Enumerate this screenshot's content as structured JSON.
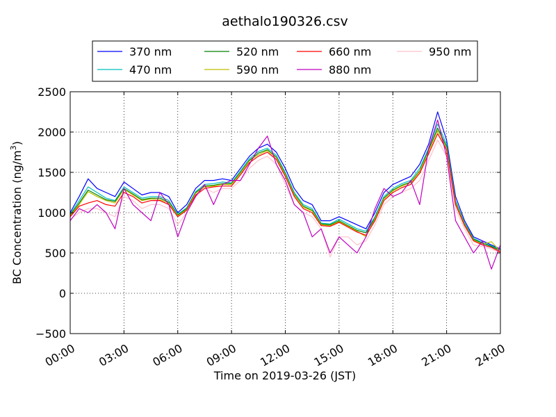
{
  "chart_data": {
    "type": "line",
    "title": "aethalo190326.csv",
    "xlabel": "Time on 2019-03-26 (JST)",
    "ylabel": "BC Concentration (ng/m³)",
    "ylabel_parts": {
      "main": "BC Concentration (ng/m",
      "sup": "3",
      "end": ")"
    },
    "xlim": [
      0,
      24
    ],
    "ylim": [
      -500,
      2500
    ],
    "x_unit": "hours",
    "grid": true,
    "legend_placement": "top-center, outside plot, 4 columns",
    "x_ticks": [
      {
        "value": 0,
        "label": "00:00"
      },
      {
        "value": 3,
        "label": "03:00"
      },
      {
        "value": 6,
        "label": "06:00"
      },
      {
        "value": 9,
        "label": "09:00"
      },
      {
        "value": 12,
        "label": "12:00"
      },
      {
        "value": 15,
        "label": "15:00"
      },
      {
        "value": 18,
        "label": "18:00"
      },
      {
        "value": 21,
        "label": "21:00"
      },
      {
        "value": 24,
        "label": "24:00"
      }
    ],
    "y_ticks": [
      {
        "value": 2500,
        "label": "2500"
      },
      {
        "value": 2000,
        "label": "2000"
      },
      {
        "value": 1500,
        "label": "1500"
      },
      {
        "value": 1000,
        "label": "1000"
      },
      {
        "value": 500,
        "label": "500"
      },
      {
        "value": 0,
        "label": "0"
      },
      {
        "value": -500,
        "label": "−500"
      }
    ],
    "x": [
      0,
      0.5,
      1,
      1.5,
      2,
      2.5,
      3,
      3.5,
      4,
      4.5,
      5,
      5.5,
      6,
      6.5,
      7,
      7.5,
      8,
      8.5,
      9,
      9.5,
      10,
      10.5,
      11,
      11.5,
      12,
      12.5,
      13,
      13.5,
      14,
      14.5,
      15,
      15.5,
      16,
      16.5,
      17,
      17.5,
      18,
      18.5,
      19,
      19.5,
      20,
      20.5,
      21,
      21.5,
      22,
      22.5,
      23,
      23.5,
      24
    ],
    "series": [
      {
        "name": "370 nm",
        "color": "#0000ff",
        "values": [
          1000,
          1200,
          1420,
          1300,
          1250,
          1200,
          1380,
          1300,
          1220,
          1250,
          1250,
          1200,
          1000,
          1100,
          1300,
          1400,
          1400,
          1420,
          1400,
          1550,
          1700,
          1800,
          1850,
          1750,
          1550,
          1300,
          1150,
          1100,
          900,
          900,
          950,
          900,
          850,
          800,
          1000,
          1250,
          1350,
          1400,
          1450,
          1600,
          1850,
          2250,
          1900,
          1200,
          900,
          700,
          650,
          600,
          550
        ]
      },
      {
        "name": "470 nm",
        "color": "#00bfbf",
        "values": [
          980,
          1150,
          1320,
          1250,
          1180,
          1150,
          1320,
          1250,
          1180,
          1200,
          1200,
          1150,
          980,
          1060,
          1260,
          1350,
          1360,
          1380,
          1370,
          1520,
          1670,
          1760,
          1800,
          1710,
          1500,
          1250,
          1100,
          1050,
          870,
          860,
          920,
          860,
          800,
          770,
          950,
          1200,
          1300,
          1360,
          1400,
          1550,
          1800,
          2100,
          1850,
          1150,
          870,
          680,
          630,
          590,
          540
        ]
      },
      {
        "name": "520 nm",
        "color": "#008000",
        "values": [
          970,
          1120,
          1280,
          1220,
          1160,
          1140,
          1300,
          1230,
          1160,
          1180,
          1180,
          1130,
          970,
          1050,
          1250,
          1330,
          1340,
          1360,
          1360,
          1500,
          1650,
          1740,
          1780,
          1690,
          1480,
          1230,
          1080,
          1030,
          860,
          850,
          900,
          840,
          780,
          750,
          930,
          1180,
          1280,
          1340,
          1380,
          1520,
          1780,
          2050,
          1820,
          1130,
          860,
          670,
          620,
          580,
          530
        ]
      },
      {
        "name": "590 nm",
        "color": "#bfbf00",
        "values": [
          960,
          1100,
          1260,
          1200,
          1150,
          1120,
          1290,
          1220,
          1150,
          1170,
          1160,
          1120,
          960,
          1040,
          1240,
          1320,
          1330,
          1350,
          1350,
          1490,
          1640,
          1720,
          1770,
          1680,
          1470,
          1220,
          1070,
          1020,
          850,
          840,
          890,
          830,
          770,
          700,
          920,
          1170,
          1270,
          1330,
          1370,
          1510,
          1760,
          2020,
          1800,
          1120,
          850,
          660,
          610,
          640,
          520
        ]
      },
      {
        "name": "660 nm",
        "color": "#ff0000",
        "values": [
          950,
          1080,
          1120,
          1150,
          1100,
          1080,
          1250,
          1200,
          1120,
          1150,
          1150,
          1100,
          950,
          1030,
          1220,
          1300,
          1320,
          1330,
          1330,
          1470,
          1620,
          1700,
          1750,
          1660,
          1450,
          1200,
          1050,
          1000,
          840,
          830,
          880,
          820,
          760,
          720,
          900,
          1150,
          1250,
          1310,
          1350,
          1490,
          1730,
          1980,
          1780,
          1100,
          840,
          650,
          600,
          570,
          510
        ]
      },
      {
        "name": "880 nm",
        "color": "#bf00bf",
        "values": [
          900,
          1050,
          1000,
          1100,
          1000,
          800,
          1300,
          1100,
          1000,
          900,
          1250,
          1100,
          700,
          1000,
          1200,
          1350,
          1100,
          1350,
          1400,
          1400,
          1600,
          1800,
          1950,
          1600,
          1400,
          1100,
          1000,
          700,
          800,
          500,
          700,
          600,
          500,
          700,
          1050,
          1300,
          1200,
          1250,
          1400,
          1100,
          1800,
          2150,
          1700,
          900,
          700,
          500,
          650,
          300,
          600
        ]
      },
      {
        "name": "950 nm",
        "color": "#ffc0cb",
        "values": [
          920,
          1000,
          1050,
          1050,
          1000,
          950,
          1200,
          1150,
          1050,
          1100,
          1100,
          1050,
          850,
          1000,
          1200,
          1300,
          1250,
          1300,
          1300,
          1400,
          1550,
          1650,
          1700,
          1600,
          1350,
          1100,
          1000,
          950,
          800,
          450,
          700,
          700,
          600,
          650,
          850,
          1100,
          1200,
          1250,
          1300,
          1400,
          1650,
          1900,
          1700,
          1050,
          800,
          600,
          580,
          550,
          500
        ]
      }
    ]
  }
}
